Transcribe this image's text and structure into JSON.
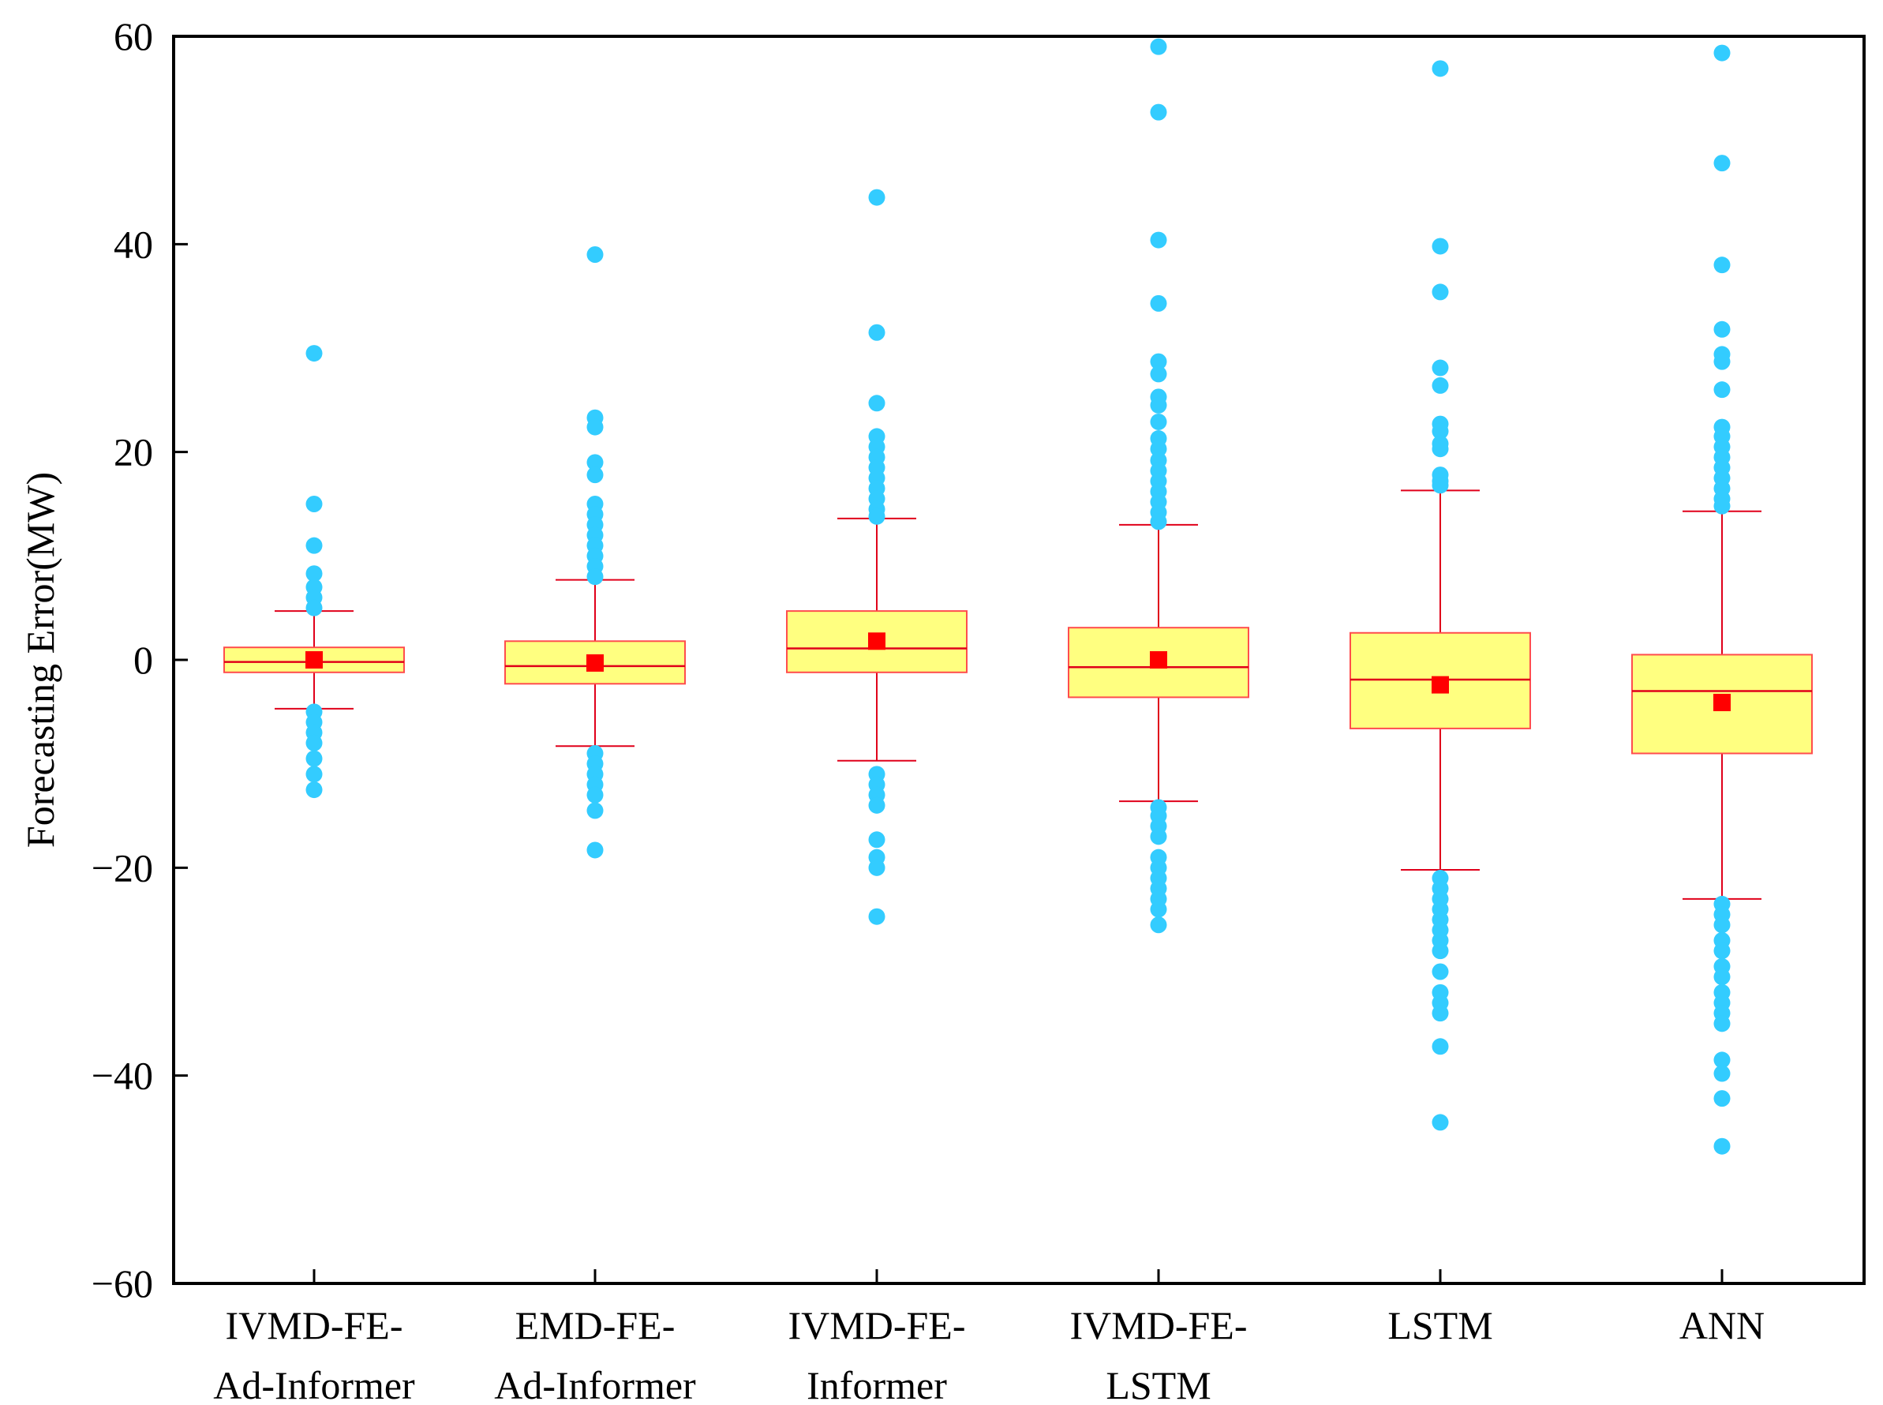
{
  "chart_data": {
    "type": "box",
    "title": "",
    "xlabel": "",
    "ylabel": "Forecasting Error(MW)",
    "ylim": [
      -60,
      60
    ],
    "yticks": [
      -60,
      -40,
      -20,
      0,
      20,
      40,
      60
    ],
    "ytick_labels": [
      "−60",
      "−40",
      "−20",
      "0",
      "20",
      "40",
      "60"
    ],
    "colors": {
      "box_fill": "#ffff80",
      "box_stroke": "#ff4d4d",
      "median": "#e0001a",
      "whisker": "#e0001a",
      "mean": "#ff0000",
      "outlier": "#33ccff",
      "axis": "#000000"
    },
    "categories": [
      [
        "IVMD-FE-",
        "Ad-Informer"
      ],
      [
        "EMD-FE-",
        "Ad-Informer"
      ],
      [
        "IVMD-FE-",
        "Informer"
      ],
      [
        "IVMD-FE-",
        "LSTM"
      ],
      [
        "LSTM"
      ],
      [
        "ANN"
      ]
    ],
    "series": [
      {
        "name": "IVMD-FE-Ad-Informer",
        "q1": -1.2,
        "median": -0.2,
        "q3": 1.2,
        "whisker_low": -4.7,
        "whisker_high": 4.7,
        "mean": 0.0,
        "outliers": [
          29.5,
          15.0,
          11.0,
          8.3,
          7.0,
          6.0,
          5.0,
          -5.0,
          -6.0,
          -7.0,
          -8.0,
          -9.5,
          -11.0,
          -12.5
        ]
      },
      {
        "name": "EMD-FE-Ad-Informer",
        "q1": -2.3,
        "median": -0.6,
        "q3": 1.8,
        "whisker_low": -8.3,
        "whisker_high": 7.7,
        "mean": -0.3,
        "outliers": [
          39.0,
          23.3,
          22.4,
          19.0,
          17.8,
          15.0,
          14.0,
          13.0,
          12.0,
          11.0,
          10.0,
          9.0,
          8.0,
          -9.0,
          -10.0,
          -11.0,
          -12.0,
          -13.0,
          -14.5,
          -18.3
        ]
      },
      {
        "name": "IVMD-FE-Informer",
        "q1": -1.2,
        "median": 1.1,
        "q3": 4.7,
        "whisker_low": -9.7,
        "whisker_high": 13.6,
        "mean": 1.8,
        "outliers": [
          44.5,
          31.5,
          24.7,
          21.5,
          20.5,
          19.5,
          18.5,
          17.5,
          16.5,
          15.5,
          14.5,
          13.8,
          -11.0,
          -12.0,
          -13.0,
          -14.0,
          -17.3,
          -19.0,
          -20.0,
          -24.7
        ]
      },
      {
        "name": "IVMD-FE-LSTM",
        "q1": -3.6,
        "median": -0.7,
        "q3": 3.1,
        "whisker_low": -13.6,
        "whisker_high": 13.0,
        "mean": 0.0,
        "outliers": [
          59.0,
          52.7,
          40.4,
          34.3,
          28.7,
          27.5,
          25.3,
          24.5,
          22.9,
          21.3,
          20.3,
          19.2,
          18.2,
          17.2,
          16.2,
          15.2,
          14.2,
          13.3,
          -14.2,
          -15.0,
          -16.0,
          -17.0,
          -19.0,
          -20.0,
          -21.0,
          -22.0,
          -23.0,
          -24.0,
          -25.5
        ]
      },
      {
        "name": "LSTM",
        "q1": -6.6,
        "median": -1.9,
        "q3": 2.6,
        "whisker_low": -20.2,
        "whisker_high": 16.3,
        "mean": -2.4,
        "outliers": [
          56.9,
          39.8,
          35.4,
          28.1,
          26.4,
          22.7,
          22.0,
          20.8,
          20.3,
          17.8,
          17.2,
          16.8,
          -21.0,
          -22.0,
          -23.0,
          -24.0,
          -25.0,
          -26.0,
          -27.0,
          -28.0,
          -30.0,
          -32.0,
          -33.0,
          -34.0,
          -37.2,
          -44.5
        ]
      },
      {
        "name": "ANN",
        "q1": -9.0,
        "median": -3.0,
        "q3": 0.5,
        "whisker_low": -23.0,
        "whisker_high": 14.3,
        "mean": -4.1,
        "outliers": [
          58.4,
          47.8,
          38.0,
          31.8,
          29.4,
          28.7,
          26.0,
          22.4,
          21.5,
          20.5,
          19.5,
          18.5,
          17.5,
          16.5,
          15.5,
          14.8,
          -23.5,
          -24.5,
          -25.5,
          -27.0,
          -28.0,
          -29.5,
          -30.5,
          -32.0,
          -33.0,
          -34.0,
          -35.0,
          -38.5,
          -39.8,
          -42.2,
          -46.8
        ]
      }
    ]
  }
}
